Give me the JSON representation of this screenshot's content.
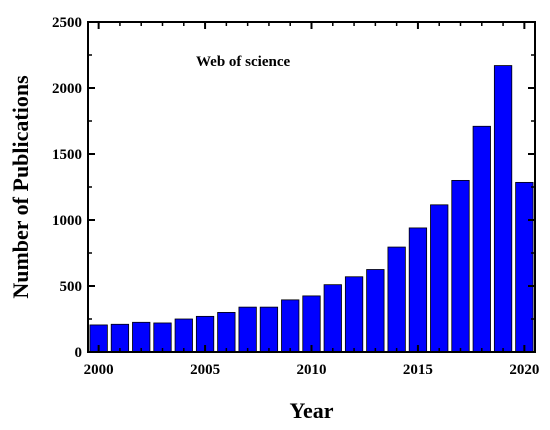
{
  "chart_data": {
    "type": "bar",
    "title": "",
    "annotation": "Web of science",
    "xlabel": "Year",
    "ylabel": "Number of Publications",
    "x": [
      2000,
      2001,
      2002,
      2003,
      2004,
      2005,
      2006,
      2007,
      2008,
      2009,
      2010,
      2011,
      2012,
      2013,
      2014,
      2015,
      2016,
      2017,
      2018,
      2019,
      2020
    ],
    "values": [
      205,
      210,
      225,
      220,
      250,
      270,
      300,
      340,
      340,
      395,
      425,
      510,
      570,
      625,
      795,
      940,
      1115,
      1300,
      1710,
      2170,
      1285
    ],
    "xlim": [
      1999.5,
      2020.5
    ],
    "ylim": [
      0,
      2500
    ],
    "xticks": [
      "2000",
      "2005",
      "2010",
      "2015",
      "2020"
    ],
    "yticks": [
      "0",
      "500",
      "1000",
      "1500",
      "2000",
      "2500"
    ],
    "grid": false,
    "bar_color": "#0000ff",
    "bar_edge_color": "#000000"
  }
}
